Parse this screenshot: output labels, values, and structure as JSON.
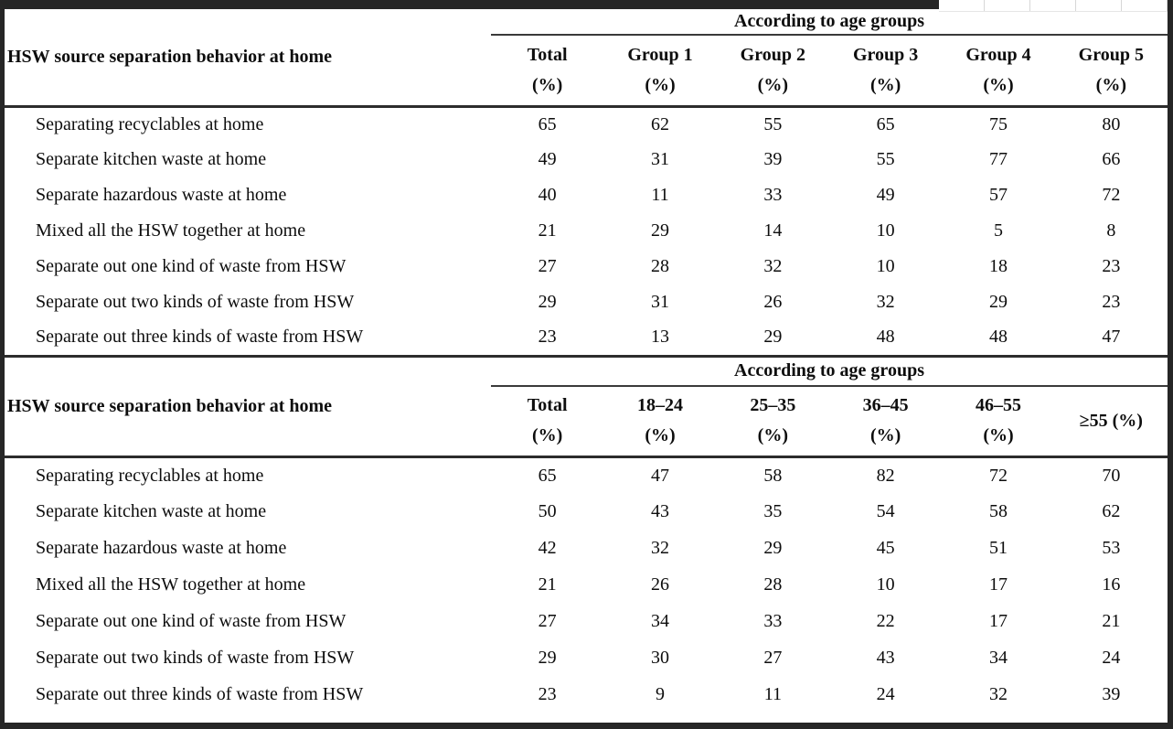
{
  "colors": {
    "frame": "#262626",
    "rule_thin": "#3a3a3a",
    "rule_thick": "#2c2c2c",
    "grid_line": "#d7d7d7",
    "text": "#0d0d0d",
    "background": "#ffffff"
  },
  "tables": [
    {
      "row_header_title": "HSW source separation behavior at home",
      "span_header": "According to age groups",
      "columns": [
        {
          "line1": "Total",
          "line2": "(%)"
        },
        {
          "line1": "Group 1",
          "line2": "(%)"
        },
        {
          "line1": "Group 2",
          "line2": "(%)"
        },
        {
          "line1": "Group 3",
          "line2": "(%)"
        },
        {
          "line1": "Group 4",
          "line2": "(%)"
        },
        {
          "line1": "Group 5",
          "line2": "(%)"
        }
      ],
      "rows": [
        {
          "label": "Separating recyclables at home",
          "values": [
            65,
            62,
            55,
            65,
            75,
            80
          ]
        },
        {
          "label": "Separate kitchen waste at home",
          "values": [
            49,
            31,
            39,
            55,
            77,
            66
          ]
        },
        {
          "label": "Separate hazardous waste at home",
          "values": [
            40,
            11,
            33,
            49,
            57,
            72
          ]
        },
        {
          "label": "Mixed all the HSW together at home",
          "values": [
            21,
            29,
            14,
            10,
            5,
            8
          ]
        },
        {
          "label": "Separate out one kind of waste from HSW",
          "values": [
            27,
            28,
            32,
            10,
            18,
            23
          ]
        },
        {
          "label": "Separate out two kinds of waste from HSW",
          "values": [
            29,
            31,
            26,
            32,
            29,
            23
          ]
        },
        {
          "label": "Separate out three kinds of waste from HSW",
          "values": [
            23,
            13,
            29,
            48,
            48,
            47
          ]
        }
      ]
    },
    {
      "row_header_title": "HSW source separation behavior at home",
      "span_header": "According to age groups",
      "columns": [
        {
          "line1": "Total",
          "line2": "(%)"
        },
        {
          "line1": "18–24",
          "line2": "(%)"
        },
        {
          "line1": "25–35",
          "line2": "(%)"
        },
        {
          "line1": "36–45",
          "line2": "(%)"
        },
        {
          "line1": "46–55",
          "line2": "(%)"
        },
        {
          "line1": "≥55 (%)",
          "line2": ""
        }
      ],
      "rows": [
        {
          "label": "Separating recyclables at home",
          "values": [
            65,
            47,
            58,
            82,
            72,
            70
          ]
        },
        {
          "label": "Separate kitchen waste at home",
          "values": [
            50,
            43,
            35,
            54,
            58,
            62
          ]
        },
        {
          "label": "Separate hazardous waste at home",
          "values": [
            42,
            32,
            29,
            45,
            51,
            53
          ]
        },
        {
          "label": "Mixed all the HSW together at home",
          "values": [
            21,
            26,
            28,
            10,
            17,
            16
          ]
        },
        {
          "label": "Separate out one kind of waste from HSW",
          "values": [
            27,
            34,
            33,
            22,
            17,
            21
          ]
        },
        {
          "label": "Separate out two kinds of waste from HSW",
          "values": [
            29,
            30,
            27,
            43,
            34,
            24
          ]
        },
        {
          "label": "Separate out three kinds of waste from HSW",
          "values": [
            23,
            9,
            11,
            24,
            32,
            39
          ]
        }
      ]
    }
  ]
}
